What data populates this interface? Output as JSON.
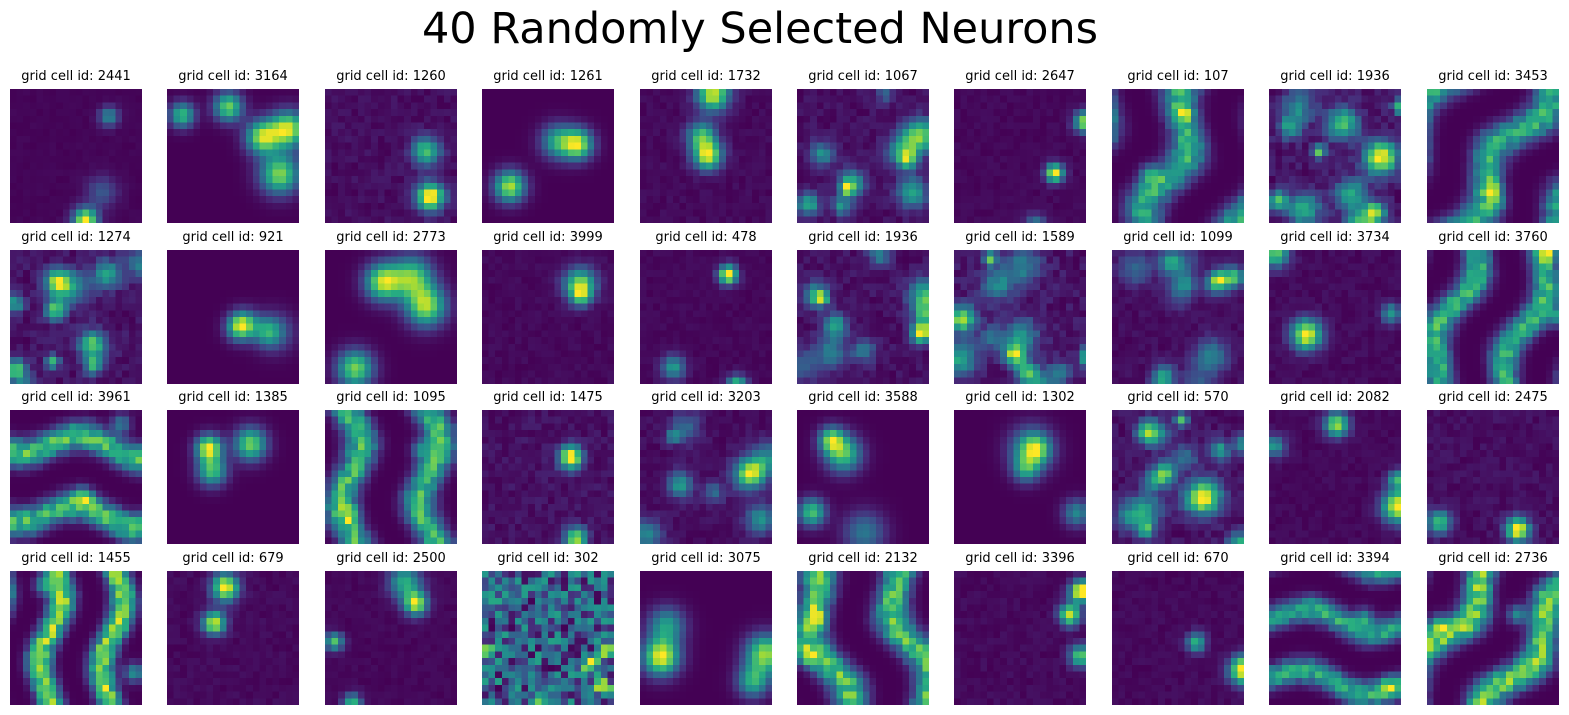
{
  "title": "40 Randomly Selected Neurons",
  "chart_data": {
    "type": "heatmap",
    "title": "40 Randomly Selected Neurons",
    "layout": {
      "rows": 4,
      "cols": 10
    },
    "colormap": "viridis",
    "colors": {
      "low": "#440154",
      "mid": "#21918c",
      "high": "#fde725"
    },
    "axes_visible": false,
    "label_prefix": "grid cell id: ",
    "panels": [
      {
        "label": "grid cell id: 2441",
        "neuron_id": 2441,
        "pattern": "sparse"
      },
      {
        "label": "grid cell id: 3164",
        "neuron_id": 3164,
        "pattern": "blobs"
      },
      {
        "label": "grid cell id: 1260",
        "neuron_id": 1260,
        "pattern": "sparse"
      },
      {
        "label": "grid cell id: 1261",
        "neuron_id": 1261,
        "pattern": "blobs"
      },
      {
        "label": "grid cell id: 1732",
        "neuron_id": 1732,
        "pattern": "sparse"
      },
      {
        "label": "grid cell id: 1067",
        "neuron_id": 1067,
        "pattern": "dense"
      },
      {
        "label": "grid cell id: 2647",
        "neuron_id": 2647,
        "pattern": "sparse"
      },
      {
        "label": "grid cell id: 107",
        "neuron_id": 107,
        "pattern": "stripes"
      },
      {
        "label": "grid cell id: 1936",
        "neuron_id": 1936,
        "pattern": "dense"
      },
      {
        "label": "grid cell id: 3453",
        "neuron_id": 3453,
        "pattern": "stripes"
      },
      {
        "label": "grid cell id: 1274",
        "neuron_id": 1274,
        "pattern": "dense"
      },
      {
        "label": "grid cell id: 921",
        "neuron_id": 921,
        "pattern": "blobs"
      },
      {
        "label": "grid cell id: 2773",
        "neuron_id": 2773,
        "pattern": "blobs"
      },
      {
        "label": "grid cell id: 3999",
        "neuron_id": 3999,
        "pattern": "sparse"
      },
      {
        "label": "grid cell id: 478",
        "neuron_id": 478,
        "pattern": "sparse"
      },
      {
        "label": "grid cell id: 1936",
        "neuron_id": 1936,
        "pattern": "dense"
      },
      {
        "label": "grid cell id: 1589",
        "neuron_id": 1589,
        "pattern": "dense"
      },
      {
        "label": "grid cell id: 1099",
        "neuron_id": 1099,
        "pattern": "dense"
      },
      {
        "label": "grid cell id: 3734",
        "neuron_id": 3734,
        "pattern": "sparse"
      },
      {
        "label": "grid cell id: 3760",
        "neuron_id": 3760,
        "pattern": "stripes"
      },
      {
        "label": "grid cell id: 3961",
        "neuron_id": 3961,
        "pattern": "stripes"
      },
      {
        "label": "grid cell id: 1385",
        "neuron_id": 1385,
        "pattern": "blobs"
      },
      {
        "label": "grid cell id: 1095",
        "neuron_id": 1095,
        "pattern": "stripes"
      },
      {
        "label": "grid cell id: 1475",
        "neuron_id": 1475,
        "pattern": "sparse"
      },
      {
        "label": "grid cell id: 3203",
        "neuron_id": 3203,
        "pattern": "dense"
      },
      {
        "label": "grid cell id: 3588",
        "neuron_id": 3588,
        "pattern": "blobs"
      },
      {
        "label": "grid cell id: 1302",
        "neuron_id": 1302,
        "pattern": "blobs"
      },
      {
        "label": "grid cell id: 570",
        "neuron_id": 570,
        "pattern": "dense"
      },
      {
        "label": "grid cell id: 2082",
        "neuron_id": 2082,
        "pattern": "sparse"
      },
      {
        "label": "grid cell id: 2475",
        "neuron_id": 2475,
        "pattern": "sparse"
      },
      {
        "label": "grid cell id: 1455",
        "neuron_id": 1455,
        "pattern": "stripes"
      },
      {
        "label": "grid cell id: 679",
        "neuron_id": 679,
        "pattern": "sparse"
      },
      {
        "label": "grid cell id: 2500",
        "neuron_id": 2500,
        "pattern": "sparse"
      },
      {
        "label": "grid cell id: 302",
        "neuron_id": 302,
        "pattern": "noise"
      },
      {
        "label": "grid cell id: 3075",
        "neuron_id": 3075,
        "pattern": "blobs"
      },
      {
        "label": "grid cell id: 2132",
        "neuron_id": 2132,
        "pattern": "stripes"
      },
      {
        "label": "grid cell id: 3396",
        "neuron_id": 3396,
        "pattern": "sparse"
      },
      {
        "label": "grid cell id: 670",
        "neuron_id": 670,
        "pattern": "sparse"
      },
      {
        "label": "grid cell id: 3394",
        "neuron_id": 3394,
        "pattern": "stripes"
      },
      {
        "label": "grid cell id: 2736",
        "neuron_id": 2736,
        "pattern": "stripes"
      }
    ]
  }
}
